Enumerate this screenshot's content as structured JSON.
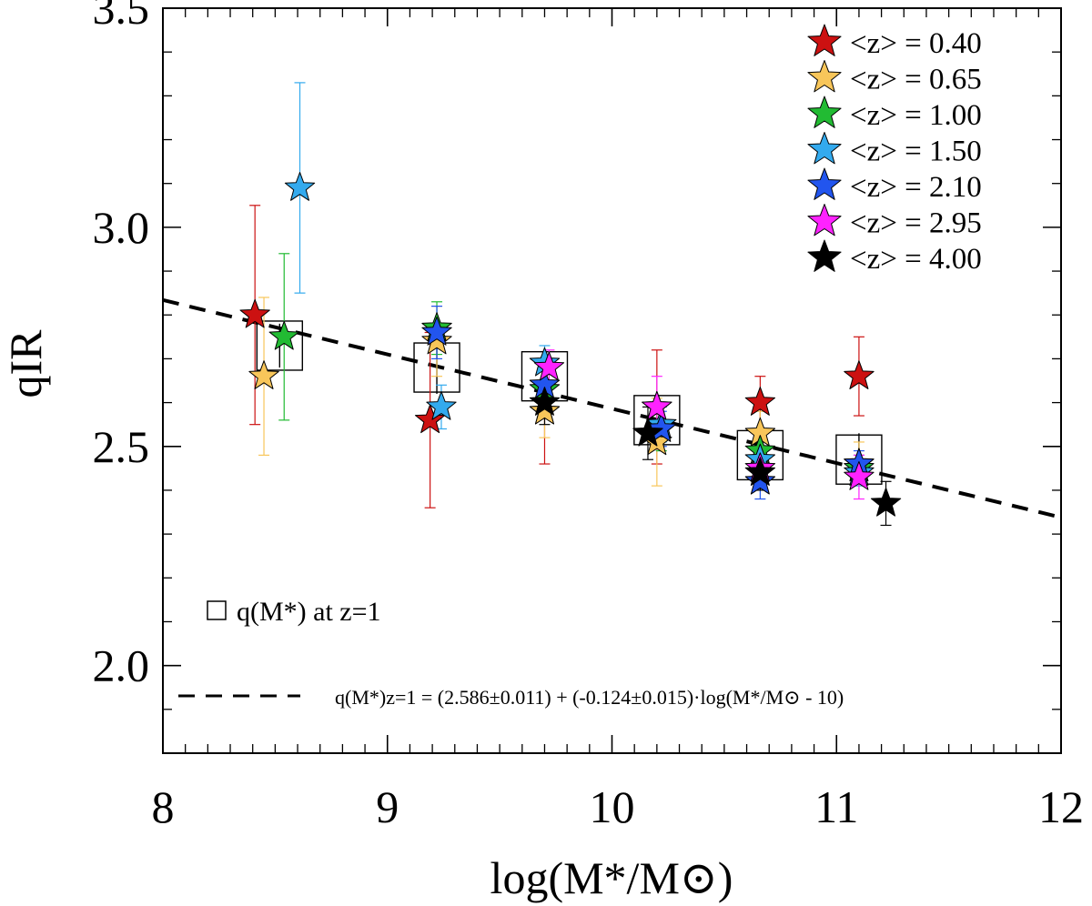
{
  "chart_data": {
    "type": "scatter",
    "xlabel": "log(M*/M⊙)",
    "ylabel": "qIR",
    "xlim": [
      8,
      12
    ],
    "ylim": [
      1.8,
      3.5
    ],
    "x_ticks": [
      {
        "value": 8,
        "label": "8"
      },
      {
        "value": 9,
        "label": "9"
      },
      {
        "value": 10,
        "label": "10"
      },
      {
        "value": 11,
        "label": "11"
      },
      {
        "value": 12,
        "label": "12"
      }
    ],
    "y_ticks": [
      {
        "value": 2.0,
        "label": "2.0"
      },
      {
        "value": 2.5,
        "label": "2.5"
      },
      {
        "value": 3.0,
        "label": "3.0"
      },
      {
        "value": 3.5,
        "label": "3.5"
      }
    ],
    "legend_position": "top-right",
    "series": [
      {
        "name": "<z> = 0.40",
        "color": "#cc1111",
        "points": [
          {
            "x": 8.41,
            "y": 2.8,
            "err": 0.25
          },
          {
            "x": 9.19,
            "y": 2.56,
            "err": 0.2
          },
          {
            "x": 9.7,
            "y": 2.58,
            "err": 0.12
          },
          {
            "x": 10.2,
            "y": 2.59,
            "err": 0.13
          },
          {
            "x": 10.66,
            "y": 2.6,
            "err": 0.06
          },
          {
            "x": 11.1,
            "y": 2.66,
            "err": 0.09
          }
        ]
      },
      {
        "name": "<z> = 0.65",
        "color": "#f8c65a",
        "points": [
          {
            "x": 8.45,
            "y": 2.66,
            "err": 0.18
          },
          {
            "x": 9.22,
            "y": 2.74,
            "err": 0.08
          },
          {
            "x": 9.7,
            "y": 2.58,
            "err": 0.06
          },
          {
            "x": 10.2,
            "y": 2.51,
            "err": 0.1
          },
          {
            "x": 10.66,
            "y": 2.53,
            "err": 0.05
          },
          {
            "x": 11.1,
            "y": 2.46,
            "err": 0.05
          }
        ]
      },
      {
        "name": "<z> = 1.00",
        "color": "#22bb33",
        "points": [
          {
            "x": 8.54,
            "y": 2.75,
            "err": 0.19
          },
          {
            "x": 9.22,
            "y": 2.77,
            "err": 0.06
          },
          {
            "x": 9.7,
            "y": 2.63,
            "err": 0.05
          },
          {
            "x": 10.22,
            "y": 2.54,
            "err": 0.05
          },
          {
            "x": 10.66,
            "y": 2.49,
            "err": 0.04
          },
          {
            "x": 11.1,
            "y": 2.45,
            "err": 0.03
          }
        ]
      },
      {
        "name": "<z> = 1.50",
        "color": "#33aaee",
        "points": [
          {
            "x": 8.61,
            "y": 3.09,
            "err": 0.24
          },
          {
            "x": 9.24,
            "y": 2.59,
            "err": 0.05
          },
          {
            "x": 9.7,
            "y": 2.69,
            "err": 0.04
          },
          {
            "x": 10.22,
            "y": 2.55,
            "err": 0.04
          },
          {
            "x": 10.66,
            "y": 2.47,
            "err": 0.04
          },
          {
            "x": 11.1,
            "y": 2.44,
            "err": 0.03
          }
        ]
      },
      {
        "name": "<z> = 2.10",
        "color": "#2255ee",
        "points": [
          {
            "x": 9.22,
            "y": 2.76,
            "err": 0.06
          },
          {
            "x": 9.7,
            "y": 2.64,
            "err": 0.04
          },
          {
            "x": 10.22,
            "y": 2.54,
            "err": 0.04
          },
          {
            "x": 10.66,
            "y": 2.42,
            "err": 0.04
          },
          {
            "x": 11.1,
            "y": 2.46,
            "err": 0.03
          }
        ]
      },
      {
        "name": "<z> = 2.95",
        "color": "#ff22ff",
        "points": [
          {
            "x": 9.72,
            "y": 2.68,
            "err": 0.04
          },
          {
            "x": 10.2,
            "y": 2.59,
            "err": 0.07
          },
          {
            "x": 10.66,
            "y": 2.45,
            "err": 0.04
          },
          {
            "x": 11.1,
            "y": 2.43,
            "err": 0.05
          }
        ]
      },
      {
        "name": "<z> = 4.00",
        "color": "#000000",
        "points": [
          {
            "x": 9.7,
            "y": 2.6,
            "err": 0.05
          },
          {
            "x": 10.16,
            "y": 2.53,
            "err": 0.06
          },
          {
            "x": 10.66,
            "y": 2.44,
            "err": 0.04
          },
          {
            "x": 11.22,
            "y": 2.37,
            "err": 0.05
          }
        ]
      }
    ],
    "boxes": {
      "legend_label": "q(M*) at z=1",
      "points": [
        {
          "x": 8.52,
          "y": 2.73,
          "err": 0.05
        },
        {
          "x": 9.22,
          "y": 2.68,
          "err": 0.06
        },
        {
          "x": 9.7,
          "y": 2.66,
          "err": 0.06
        },
        {
          "x": 10.2,
          "y": 2.56,
          "err": 0.06
        },
        {
          "x": 10.66,
          "y": 2.48,
          "err": 0.06
        },
        {
          "x": 11.1,
          "y": 2.47,
          "err": 0.06
        }
      ]
    },
    "fit_line": {
      "intercept": 2.586,
      "slope": -0.124,
      "pivot": 10,
      "legend_label": "q(M*)z=1 = (2.586±0.011) + (-0.124±0.015)·log(M*/M⊙ - 10)"
    }
  }
}
